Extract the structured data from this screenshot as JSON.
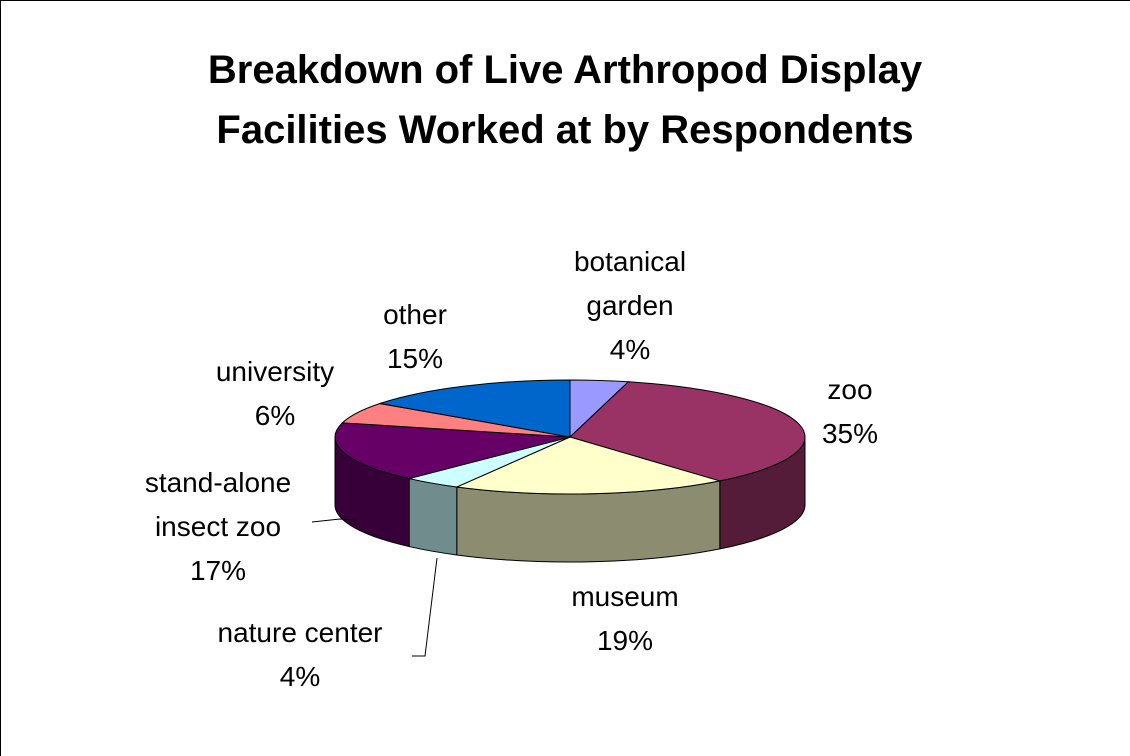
{
  "chart_data": {
    "type": "pie3d",
    "title": "Breakdown of Live Arthropod Display Facilities Worked at by Respondents",
    "categories": [
      "botanical garden",
      "zoo",
      "museum",
      "nature center",
      "stand-alone insect zoo",
      "university",
      "other"
    ],
    "values": [
      4,
      35,
      19,
      4,
      17,
      6,
      15
    ],
    "value_labels": [
      "4%",
      "35%",
      "19%",
      "4%",
      "17%",
      "6%",
      "15%"
    ],
    "colors": [
      "#9999ff",
      "#993366",
      "#ffffcc",
      "#ccffff",
      "#660066",
      "#ff8080",
      "#0066cc"
    ]
  }
}
